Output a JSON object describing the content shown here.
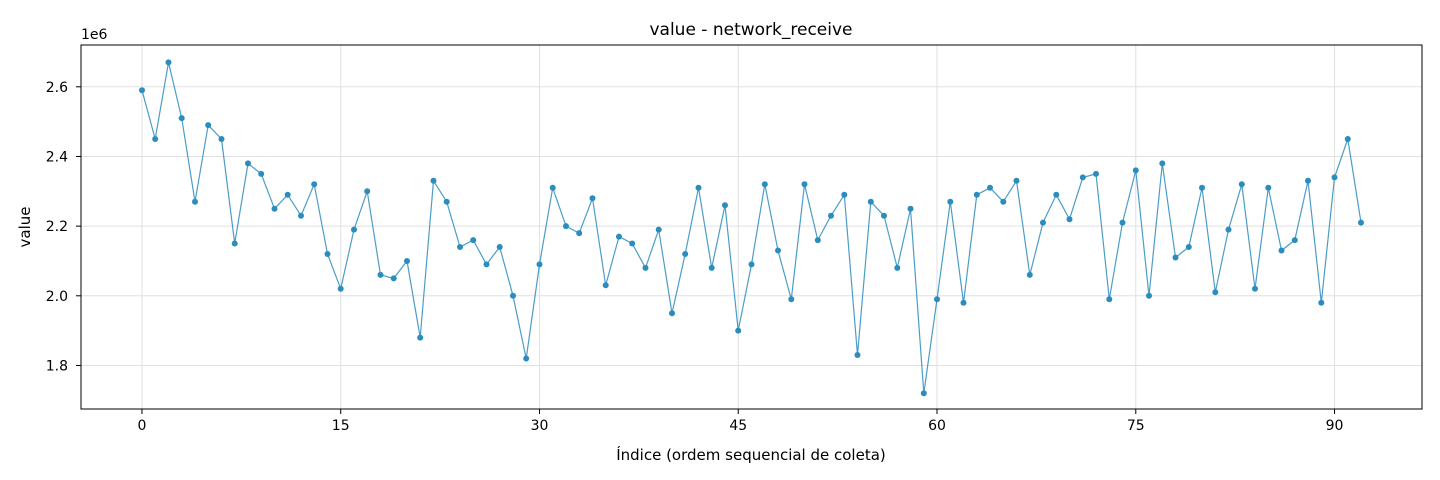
{
  "chart_data": {
    "type": "line",
    "title": "value - network_receive",
    "xlabel": "Índice (ordem sequencial de coleta)",
    "ylabel": "value",
    "y_offset_label": "1e6",
    "xlim": [
      -4.6,
      96.6
    ],
    "ylim": [
      1.675,
      2.72
    ],
    "x_ticks": [
      0,
      15,
      30,
      45,
      60,
      75,
      90
    ],
    "x_tick_labels": [
      "0",
      "15",
      "30",
      "45",
      "60",
      "75",
      "90"
    ],
    "y_ticks": [
      1.8,
      2.0,
      2.2,
      2.4,
      2.6
    ],
    "y_tick_labels": [
      "1.8",
      "2.0",
      "2.2",
      "2.4",
      "2.6"
    ],
    "grid": true,
    "color": "#2b8cbe",
    "series": [
      {
        "values": [
          2.59,
          2.45,
          2.67,
          2.51,
          2.27,
          2.49,
          2.45,
          2.15,
          2.38,
          2.35,
          2.25,
          2.29,
          2.23,
          2.32,
          2.12,
          2.02,
          2.19,
          2.3,
          2.06,
          2.05,
          2.1,
          1.88,
          2.33,
          2.27,
          2.14,
          2.16,
          2.09,
          2.14,
          2.0,
          1.82,
          2.09,
          2.31,
          2.2,
          2.18,
          2.28,
          2.03,
          2.17,
          2.15,
          2.08,
          2.19,
          1.95,
          2.12,
          2.31,
          2.08,
          2.26,
          1.9,
          2.09,
          2.32,
          2.13,
          1.99,
          2.32,
          2.16,
          2.23,
          2.29,
          1.83,
          2.27,
          2.23,
          2.08,
          2.25,
          1.72,
          1.99,
          2.27,
          1.98,
          2.29,
          2.31,
          2.27,
          2.33,
          2.06,
          2.21,
          2.29,
          2.22,
          2.34,
          2.35,
          1.99,
          2.21,
          2.36,
          2.0,
          2.38,
          2.11,
          2.14,
          2.31,
          2.01,
          2.19,
          2.32,
          2.02,
          2.31,
          2.13,
          2.16,
          2.33,
          1.98,
          2.34,
          2.45,
          2.21
        ]
      }
    ]
  }
}
